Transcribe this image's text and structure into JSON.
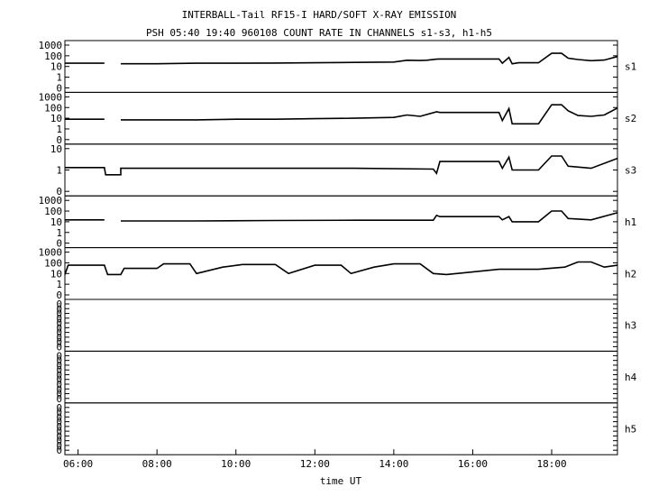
{
  "title": "INTERBALL-Tail RF15-I HARD/SOFT X-RAY EMISSION",
  "subtitle": "PSH 05:40 19:40 960108  COUNT RATE IN CHANNELS s1-s3, h1-h5",
  "chart_data": {
    "type": "line",
    "title": "INTERBALL-Tail RF15-I HARD/SOFT X-RAY EMISSION",
    "subtitle": "PSH 05:40 19:40 960108  COUNT RATE IN CHANNELS s1-s3, h1-h5",
    "xlabel": "time UT",
    "x_ticks": [
      "06:00",
      "08:00",
      "10:00",
      "12:00",
      "14:00",
      "16:00",
      "18:00"
    ],
    "x_range": [
      "05:40",
      "19:40"
    ],
    "y_scale": "log",
    "grid": false,
    "panels": [
      {
        "name": "s1",
        "y_ticks": [
          "1000",
          "100",
          "10",
          "1",
          "0"
        ],
        "points": [
          [
            "05:40",
            20
          ],
          [
            "06:40",
            20
          ],
          [
            "06:42",
            null
          ],
          [
            "07:05",
            null
          ],
          [
            "07:05",
            18
          ],
          [
            "08:00",
            18
          ],
          [
            "09:00",
            20
          ],
          [
            "10:00",
            20
          ],
          [
            "11:00",
            21
          ],
          [
            "12:00",
            22
          ],
          [
            "13:00",
            24
          ],
          [
            "14:00",
            26
          ],
          [
            "14:20",
            38
          ],
          [
            "14:40",
            36
          ],
          [
            "14:50",
            38
          ],
          [
            "15:05",
            48
          ],
          [
            "15:10",
            50
          ],
          [
            "16:40",
            50
          ],
          [
            "16:45",
            20
          ],
          [
            "16:55",
            70
          ],
          [
            "17:00",
            18
          ],
          [
            "17:10",
            22
          ],
          [
            "17:40",
            22
          ],
          [
            "18:00",
            170
          ],
          [
            "18:15",
            170
          ],
          [
            "18:25",
            60
          ],
          [
            "18:40",
            45
          ],
          [
            "19:00",
            35
          ],
          [
            "19:20",
            40
          ],
          [
            "19:40",
            85
          ]
        ]
      },
      {
        "name": "s2",
        "y_ticks": [
          "1000",
          "100",
          "10",
          "1",
          "0"
        ],
        "points": [
          [
            "05:40",
            8
          ],
          [
            "06:40",
            8
          ],
          [
            "06:42",
            null
          ],
          [
            "07:05",
            null
          ],
          [
            "07:05",
            7
          ],
          [
            "08:00",
            7
          ],
          [
            "09:00",
            7
          ],
          [
            "10:00",
            8
          ],
          [
            "11:00",
            8
          ],
          [
            "12:00",
            9
          ],
          [
            "13:00",
            10
          ],
          [
            "14:00",
            12
          ],
          [
            "14:20",
            20
          ],
          [
            "14:40",
            15
          ],
          [
            "15:05",
            40
          ],
          [
            "15:10",
            35
          ],
          [
            "16:40",
            35
          ],
          [
            "16:45",
            6
          ],
          [
            "16:55",
            80
          ],
          [
            "17:00",
            3
          ],
          [
            "17:10",
            3
          ],
          [
            "17:40",
            3
          ],
          [
            "18:00",
            180
          ],
          [
            "18:15",
            180
          ],
          [
            "18:25",
            50
          ],
          [
            "18:40",
            18
          ],
          [
            "19:00",
            15
          ],
          [
            "19:20",
            20
          ],
          [
            "19:40",
            90
          ]
        ]
      },
      {
        "name": "s3",
        "y_ticks": [
          "10",
          "1",
          "0"
        ],
        "points": [
          [
            "05:40",
            1.3
          ],
          [
            "06:40",
            1.3
          ],
          [
            "06:42",
            0.6
          ],
          [
            "07:05",
            0.6
          ],
          [
            "07:05",
            1.2
          ],
          [
            "09:00",
            1.2
          ],
          [
            "11:00",
            1.2
          ],
          [
            "13:00",
            1.2
          ],
          [
            "15:00",
            1.1
          ],
          [
            "15:05",
            0.7
          ],
          [
            "15:10",
            2.5
          ],
          [
            "16:40",
            2.5
          ],
          [
            "16:45",
            1.2
          ],
          [
            "16:55",
            4
          ],
          [
            "17:00",
            1.0
          ],
          [
            "17:40",
            1.0
          ],
          [
            "18:00",
            4.5
          ],
          [
            "18:15",
            4.5
          ],
          [
            "18:25",
            1.5
          ],
          [
            "19:00",
            1.2
          ],
          [
            "19:40",
            3.5
          ]
        ]
      },
      {
        "name": "h1",
        "y_ticks": [
          "1000",
          "100",
          "10",
          "1",
          "0"
        ],
        "points": [
          [
            "05:40",
            15
          ],
          [
            "06:40",
            15
          ],
          [
            "06:45",
            null
          ],
          [
            "07:05",
            null
          ],
          [
            "07:05",
            12
          ],
          [
            "09:00",
            12
          ],
          [
            "11:00",
            13
          ],
          [
            "13:00",
            14
          ],
          [
            "15:00",
            14
          ],
          [
            "15:05",
            40
          ],
          [
            "15:10",
            30
          ],
          [
            "16:40",
            30
          ],
          [
            "16:45",
            15
          ],
          [
            "16:55",
            30
          ],
          [
            "17:00",
            10
          ],
          [
            "17:40",
            10
          ],
          [
            "18:00",
            100
          ],
          [
            "18:15",
            100
          ],
          [
            "18:25",
            20
          ],
          [
            "19:00",
            15
          ],
          [
            "19:40",
            70
          ]
        ]
      },
      {
        "name": "h2",
        "y_ticks": [
          "1000",
          "100",
          "10",
          "1",
          "0"
        ],
        "points": [
          [
            "05:40",
            8
          ],
          [
            "05:45",
            60
          ],
          [
            "06:40",
            60
          ],
          [
            "06:45",
            8
          ],
          [
            "07:05",
            8
          ],
          [
            "07:10",
            30
          ],
          [
            "08:00",
            30
          ],
          [
            "08:10",
            80
          ],
          [
            "08:50",
            80
          ],
          [
            "09:00",
            10
          ],
          [
            "09:40",
            40
          ],
          [
            "10:10",
            70
          ],
          [
            "11:00",
            70
          ],
          [
            "11:20",
            10
          ],
          [
            "12:00",
            60
          ],
          [
            "12:40",
            60
          ],
          [
            "12:55",
            10
          ],
          [
            "13:30",
            40
          ],
          [
            "14:00",
            80
          ],
          [
            "14:40",
            80
          ],
          [
            "15:00",
            10
          ],
          [
            "15:20",
            8
          ],
          [
            "16:40",
            25
          ],
          [
            "17:00",
            25
          ],
          [
            "17:40",
            25
          ],
          [
            "18:20",
            40
          ],
          [
            "18:40",
            120
          ],
          [
            "19:00",
            120
          ],
          [
            "19:20",
            40
          ],
          [
            "19:40",
            60
          ]
        ]
      },
      {
        "name": "h3",
        "y_ticks": [
          "0",
          "0",
          "0",
          "0",
          "0",
          "0",
          "0",
          "0",
          "0",
          "0"
        ],
        "points": []
      },
      {
        "name": "h4",
        "y_ticks": [
          "0",
          "0",
          "0",
          "0",
          "0",
          "0",
          "0",
          "0",
          "0",
          "0"
        ],
        "points": []
      },
      {
        "name": "h5",
        "y_ticks": [
          "0",
          "0",
          "0",
          "0",
          "0",
          "0",
          "0",
          "0",
          "0",
          "0"
        ],
        "points": []
      }
    ]
  }
}
